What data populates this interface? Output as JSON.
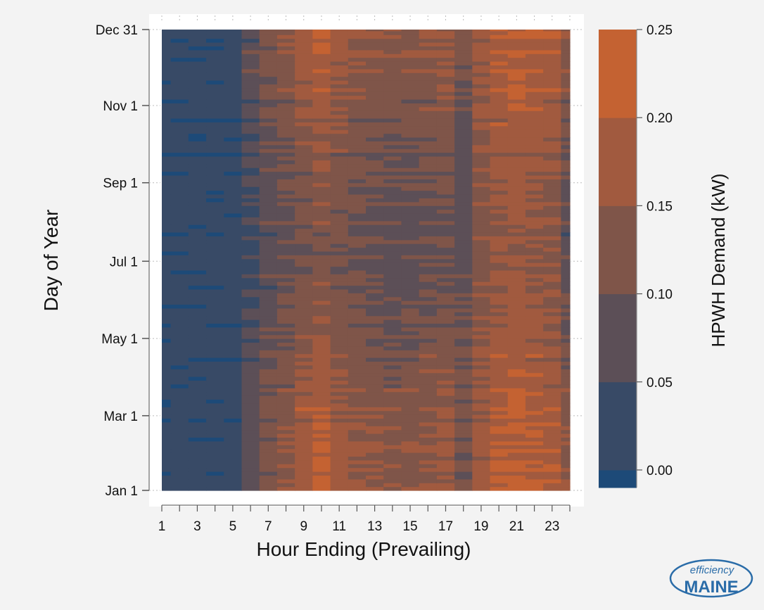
{
  "chart_data": {
    "type": "heatmap",
    "xlabel": "Hour Ending (Prevailing)",
    "ylabel": "Day of Year",
    "colorbar_label": "HPWH Demand (kW)",
    "x_range": [
      1,
      24
    ],
    "x_ticks": [
      1,
      3,
      5,
      7,
      9,
      11,
      13,
      15,
      17,
      19,
      21,
      23
    ],
    "y_ticks": [
      "Jan 1",
      "Mar 1",
      "May 1",
      "Jul 1",
      "Sep 1",
      "Nov 1",
      "Dec 31"
    ],
    "y_tick_days": [
      1,
      60,
      121,
      182,
      244,
      305,
      365
    ],
    "y_range_days": [
      1,
      365
    ],
    "color_levels": [
      0.0,
      0.05,
      0.1,
      0.15,
      0.2,
      0.25
    ],
    "colorbar_ticks": [
      "0.00",
      "0.05",
      "0.10",
      "0.15",
      "0.20",
      "0.25"
    ],
    "color_bins": [
      {
        "range": [
          -0.01,
          0.0
        ],
        "color": "#1d4a78"
      },
      {
        "range": [
          0.0,
          0.05
        ],
        "color": "#384a66"
      },
      {
        "range": [
          0.05,
          0.1
        ],
        "color": "#5c4f57"
      },
      {
        "range": [
          0.1,
          0.15
        ],
        "color": "#7f5549"
      },
      {
        "range": [
          0.15,
          0.2
        ],
        "color": "#a15a3f"
      },
      {
        "range": [
          0.2,
          0.25
        ],
        "color": "#c46232"
      }
    ],
    "hourly_profile_winter": [
      0.02,
      0.02,
      0.02,
      0.02,
      0.03,
      0.08,
      0.12,
      0.14,
      0.18,
      0.21,
      0.17,
      0.15,
      0.15,
      0.14,
      0.14,
      0.15,
      0.16,
      0.11,
      0.17,
      0.2,
      0.21,
      0.2,
      0.19,
      0.14
    ],
    "hourly_profile_summer": [
      0.02,
      0.02,
      0.02,
      0.02,
      0.02,
      0.04,
      0.07,
      0.09,
      0.11,
      0.12,
      0.11,
      0.1,
      0.09,
      0.08,
      0.08,
      0.09,
      0.1,
      0.08,
      0.13,
      0.15,
      0.16,
      0.15,
      0.14,
      0.08
    ]
  },
  "logo": {
    "top_word": "efficiency",
    "bottom_word": "MAINE",
    "color": "#2a6ca8"
  }
}
